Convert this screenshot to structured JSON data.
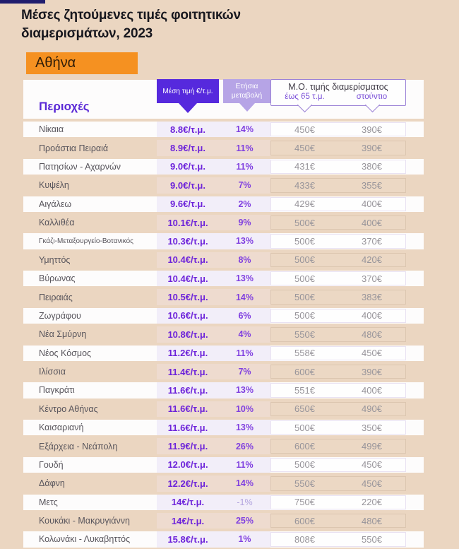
{
  "colors": {
    "background": "#ebd6c1",
    "accent_orange": "#f59121",
    "purple_dark": "#5629dd",
    "purple_light": "#b6a4e6",
    "purple_text": "#5a28d6",
    "navy_bar": "#201d6e"
  },
  "title": {
    "line1": "Μέσες ζητούμενες τιμές φοιτητικών",
    "line2": "διαμερισμάτων, 2023"
  },
  "region_badge": "Αθήνα",
  "table": {
    "col_area": "Περιοχές",
    "col_price": "Μέση τιμή €/τ.μ.",
    "col_change_line1": "Ετήσια",
    "col_change_line2": "μεταβολή",
    "col_avg_title": "Μ.Ο. τιμής διαμερίσματος",
    "col_avg_sub1": "έως 65 τ.μ.",
    "col_avg_sub2": "στούντιο",
    "rows": [
      {
        "area": "Νίκαια",
        "price": "8.8€/τ.μ.",
        "change": "14%",
        "upto65": "450€",
        "studio": "390€"
      },
      {
        "area": "Προάστια Πειραιά",
        "price": "8.9€/τ.μ.",
        "change": "11%",
        "upto65": "450€",
        "studio": "390€"
      },
      {
        "area": "Πατησίων - Αχαρνών",
        "price": "9.0€/τ.μ.",
        "change": "11%",
        "upto65": "431€",
        "studio": "380€"
      },
      {
        "area": "Κυψέλη",
        "price": "9.0€/τ.μ.",
        "change": "7%",
        "upto65": "433€",
        "studio": "355€"
      },
      {
        "area": "Αιγάλεω",
        "price": "9.6€/τ.μ.",
        "change": "2%",
        "upto65": "429€",
        "studio": "400€"
      },
      {
        "area": "Καλλιθέα",
        "price": "10.1€/τ.μ.",
        "change": "9%",
        "upto65": "500€",
        "studio": "400€"
      },
      {
        "area": "Γκάζι-Μεταξουργείο-Βοτανικός",
        "price": "10.3€/τ.μ.",
        "change": "13%",
        "upto65": "500€",
        "studio": "370€"
      },
      {
        "area": "Υμηττός",
        "price": "10.4€/τ.μ.",
        "change": "8%",
        "upto65": "500€",
        "studio": "420€"
      },
      {
        "area": "Βύρωνας",
        "price": "10.4€/τ.μ.",
        "change": "13%",
        "upto65": "500€",
        "studio": "370€"
      },
      {
        "area": "Πειραιάς",
        "price": "10.5€/τ.μ.",
        "change": "14%",
        "upto65": "500€",
        "studio": "383€"
      },
      {
        "area": "Ζωγράφου",
        "price": "10.6€/τ.μ.",
        "change": "6%",
        "upto65": "500€",
        "studio": "400€"
      },
      {
        "area": "Νέα Σμύρνη",
        "price": "10.8€/τ.μ.",
        "change": "4%",
        "upto65": "550€",
        "studio": "480€"
      },
      {
        "area": "Νέος Κόσμος",
        "price": "11.2€/τ.μ.",
        "change": "11%",
        "upto65": "558€",
        "studio": "450€"
      },
      {
        "area": "Ιλίσσια",
        "price": "11.4€/τ.μ.",
        "change": "7%",
        "upto65": "600€",
        "studio": "390€"
      },
      {
        "area": "Παγκράτι",
        "price": "11.6€/τ.μ.",
        "change": "13%",
        "upto65": "551€",
        "studio": "400€"
      },
      {
        "area": "Κέντρο Αθήνας",
        "price": "11.6€/τ.μ.",
        "change": "10%",
        "upto65": "650€",
        "studio": "490€"
      },
      {
        "area": "Καισαριανή",
        "price": "11.6€/τ.μ.",
        "change": "13%",
        "upto65": "500€",
        "studio": "350€"
      },
      {
        "area": "Εξάρχεια - Νεάπολη",
        "price": "11.9€/τ.μ.",
        "change": "26%",
        "upto65": "600€",
        "studio": "499€"
      },
      {
        "area": "Γουδή",
        "price": "12.0€/τ.μ.",
        "change": "11%",
        "upto65": "500€",
        "studio": "450€"
      },
      {
        "area": "Δάφνη",
        "price": "12.2€/τ.μ.",
        "change": "14%",
        "upto65": "550€",
        "studio": "450€"
      },
      {
        "area": "Μετς",
        "price": "14€/τ.μ.",
        "change": "-1%",
        "upto65": "750€",
        "studio": "220€"
      },
      {
        "area": "Κουκάκι - Μακρυγιάννη",
        "price": "14€/τ.μ.",
        "change": "25%",
        "upto65": "600€",
        "studio": "480€"
      },
      {
        "area": "Κολωνάκι - Λυκαβηττός",
        "price": "15.8€/τ.μ.",
        "change": "1%",
        "upto65": "808€",
        "studio": "550€"
      }
    ]
  }
}
